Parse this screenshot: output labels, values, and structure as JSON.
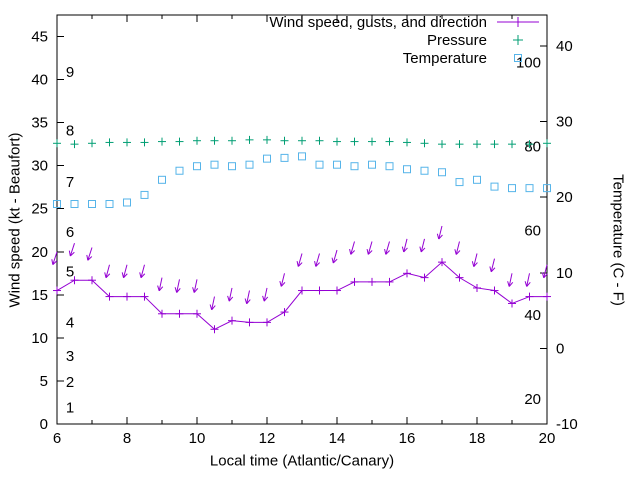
{
  "chart_data": {
    "type": "line",
    "title": "",
    "xlabel": "Local time (Atlantic/Canary)",
    "ylabel": "Wind speed (kt - Beaufort)",
    "y2label": "Temperature (C - F)",
    "x_range": [
      6,
      20
    ],
    "y_range": [
      0,
      47.5
    ],
    "y2_range": [
      -10,
      44.1
    ],
    "x_ticks": [
      6,
      8,
      10,
      12,
      14,
      16,
      18,
      20
    ],
    "x_minor_ticks": [
      7,
      9,
      11,
      13,
      15,
      17,
      19
    ],
    "y_ticks": [
      0,
      5,
      10,
      15,
      20,
      25,
      30,
      35,
      40,
      45
    ],
    "y2_ticks": [
      -10,
      0,
      10,
      20,
      30,
      40
    ],
    "beaufort_scale_labels": [
      {
        "label": "1",
        "kt": 1.9
      },
      {
        "label": "2",
        "kt": 4.9
      },
      {
        "label": "3",
        "kt": 7.9
      },
      {
        "label": "4",
        "kt": 11.8
      },
      {
        "label": "5",
        "kt": 17.7
      },
      {
        "label": "6",
        "kt": 22.3
      },
      {
        "label": "7",
        "kt": 28.1
      },
      {
        "label": "8",
        "kt": 34.1
      },
      {
        "label": "9",
        "kt": 40.9
      }
    ],
    "fahrenheit_scale_labels": [
      {
        "label": "20",
        "c": -6.7
      },
      {
        "label": "40",
        "c": 4.4
      },
      {
        "label": "60",
        "c": 15.6
      },
      {
        "label": "80",
        "c": 26.7
      },
      {
        "label": "100",
        "c": 37.8
      }
    ],
    "legend": [
      {
        "label": "Wind speed, gusts, and direction",
        "series": "wind"
      },
      {
        "label": "Pressure",
        "series": "pressure"
      },
      {
        "label": "Temperature",
        "series": "temperature"
      }
    ],
    "colors": {
      "wind": "#9400d3",
      "pressure": "#009e73",
      "temperature": "#56b4e9",
      "axis": "#000000",
      "background": "#ffffff"
    },
    "x": [
      6,
      6.5,
      7,
      7.5,
      8,
      8.5,
      9,
      9.5,
      10,
      10.5,
      11,
      11.5,
      12,
      12.5,
      13,
      13.5,
      14,
      14.5,
      15,
      15.5,
      16,
      16.5,
      17,
      17.5,
      18,
      18.5,
      19,
      19.5,
      20
    ],
    "series": [
      {
        "name": "Wind speed",
        "axis": "y",
        "unit": "kt",
        "style": "linespoints-plus",
        "color_key": "wind",
        "values": [
          15.5,
          16.7,
          16.7,
          14.8,
          14.8,
          14.8,
          12.8,
          12.8,
          12.8,
          11.0,
          12.0,
          11.8,
          11.8,
          13.0,
          15.5,
          15.5,
          15.5,
          16.5,
          16.5,
          16.5,
          17.5,
          17.0,
          18.8,
          17.0,
          15.8,
          15.5,
          14.0,
          14.8,
          14.8
        ]
      },
      {
        "name": "Wind gusts and direction",
        "axis": "y",
        "unit": "kt",
        "style": "vectors-down",
        "color_key": "wind",
        "values": [
          20.0,
          21.0,
          20.5,
          18.5,
          18.5,
          18.5,
          17.0,
          16.8,
          16.8,
          14.8,
          15.8,
          15.5,
          15.8,
          17.5,
          19.8,
          19.8,
          20.2,
          21.2,
          21.2,
          21.2,
          21.5,
          21.5,
          23.0,
          21.2,
          19.8,
          19.2,
          17.5,
          17.5,
          18.5
        ],
        "arrow_lean_deg": [
          18,
          18,
          18,
          15,
          15,
          15,
          12,
          12,
          12,
          12,
          12,
          12,
          12,
          14,
          16,
          16,
          16,
          16,
          16,
          16,
          14,
          14,
          14,
          14,
          14,
          14,
          12,
          12,
          14
        ]
      },
      {
        "name": "Pressure",
        "axis": "y",
        "unit": "",
        "style": "points-plus",
        "color_key": "pressure",
        "values": [
          32.6,
          32.5,
          32.6,
          32.7,
          32.7,
          32.7,
          32.8,
          32.8,
          32.9,
          32.9,
          32.9,
          33.0,
          33.0,
          32.9,
          32.9,
          32.9,
          32.8,
          32.8,
          32.8,
          32.8,
          32.7,
          32.6,
          32.5,
          32.5,
          32.5,
          32.5,
          32.5,
          32.5,
          32.6
        ]
      },
      {
        "name": "Temperature",
        "axis": "y2",
        "unit": "C",
        "style": "points-square",
        "color_key": "temperature",
        "values": [
          19.1,
          19.1,
          19.1,
          19.1,
          19.3,
          20.3,
          22.3,
          23.5,
          24.1,
          24.3,
          24.1,
          24.3,
          25.1,
          25.2,
          25.4,
          24.3,
          24.3,
          24.1,
          24.3,
          24.1,
          23.7,
          23.5,
          23.3,
          22.0,
          22.3,
          21.4,
          21.2,
          21.2,
          21.2
        ]
      }
    ]
  }
}
